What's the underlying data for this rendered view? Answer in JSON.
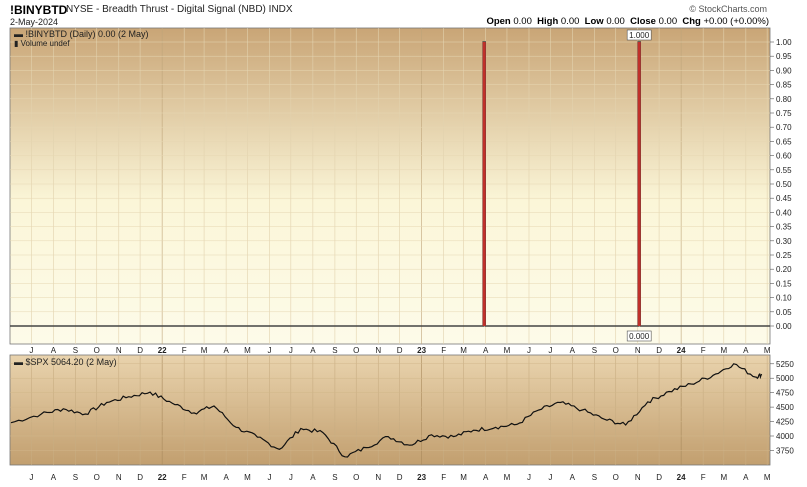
{
  "header": {
    "symbol": "!BINYBTD",
    "description": "NYSE - Breadth Thrust - Digital Signal (NBD)",
    "exchange": "INDX",
    "date": "2-May-2024",
    "brand": "StockCharts.com",
    "open_label": "Open",
    "open": "0.00",
    "high_label": "High",
    "high": "0.00",
    "low_label": "Low",
    "low": "0.00",
    "close_label": "Close",
    "close": "0.00",
    "chg_label": "Chg",
    "chg": "+0.00 (+0.00%)"
  },
  "chart_data": [
    {
      "type": "line",
      "legend": "!BINYBTD (Daily) 0.00 (2 May)",
      "sublegend": "Volume undef",
      "ylim": [
        0,
        1.0
      ],
      "yticks": [
        "1.00",
        "0.95",
        "0.90",
        "0.85",
        "0.80",
        "0.75",
        "0.70",
        "0.65",
        "0.60",
        "0.55",
        "0.50",
        "0.45",
        "0.40",
        "0.35",
        "0.30",
        "0.25",
        "0.20",
        "0.15",
        "0.10",
        "0.05",
        "0.00"
      ],
      "baseline": 0,
      "signals": [
        {
          "date": "2023-03-30",
          "value": 1
        },
        {
          "date": "2023-11-03",
          "value": 1
        }
      ],
      "annotations": [
        "1.000",
        "0.000"
      ],
      "line_color": "#444444",
      "signal_color": "#c0302a"
    },
    {
      "type": "line",
      "legend": "$SPX 5064.20 (2 May)",
      "ylim": [
        3550,
        5350
      ],
      "yticks": [
        "5250",
        "5000",
        "4750",
        "4500",
        "4250",
        "4000",
        "3750"
      ],
      "x": [
        "2021-06",
        "2021-07",
        "2021-08",
        "2021-09",
        "2021-10",
        "2021-11",
        "2021-12",
        "2022-01",
        "2022-02",
        "2022-03",
        "2022-04",
        "2022-05",
        "2022-06",
        "2022-07",
        "2022-08",
        "2022-09",
        "2022-10",
        "2022-11",
        "2022-12",
        "2023-01",
        "2023-02",
        "2023-03",
        "2023-04",
        "2023-05",
        "2023-06",
        "2023-07",
        "2023-08",
        "2023-09",
        "2023-10",
        "2023-11",
        "2023-12",
        "2024-01",
        "2024-02",
        "2024-03",
        "2024-04",
        "2024-05"
      ],
      "values": [
        4230,
        4380,
        4470,
        4380,
        4580,
        4680,
        4760,
        4570,
        4400,
        4520,
        4150,
        3980,
        3770,
        4130,
        4060,
        3640,
        3800,
        3990,
        3840,
        4020,
        3990,
        4100,
        4150,
        4200,
        4450,
        4580,
        4450,
        4290,
        4190,
        4590,
        4770,
        4900,
        5050,
        5250,
        5020,
        5064
      ],
      "line_color": "#111111"
    }
  ],
  "x_axis_labels": [
    "J",
    "A",
    "S",
    "O",
    "N",
    "D",
    "22",
    "F",
    "M",
    "A",
    "M",
    "J",
    "J",
    "A",
    "S",
    "O",
    "N",
    "D",
    "23",
    "F",
    "M",
    "A",
    "M",
    "J",
    "J",
    "A",
    "S",
    "O",
    "N",
    "D",
    "24",
    "F",
    "M",
    "A",
    "M"
  ],
  "colors": {
    "panel_top_fill": "#c9a576",
    "panel_mid_fill": "#fbf6d8",
    "spx_fill_top": "#e9d3ad",
    "spx_fill_bottom": "#c29f6f",
    "grid": "#d9c49c"
  }
}
